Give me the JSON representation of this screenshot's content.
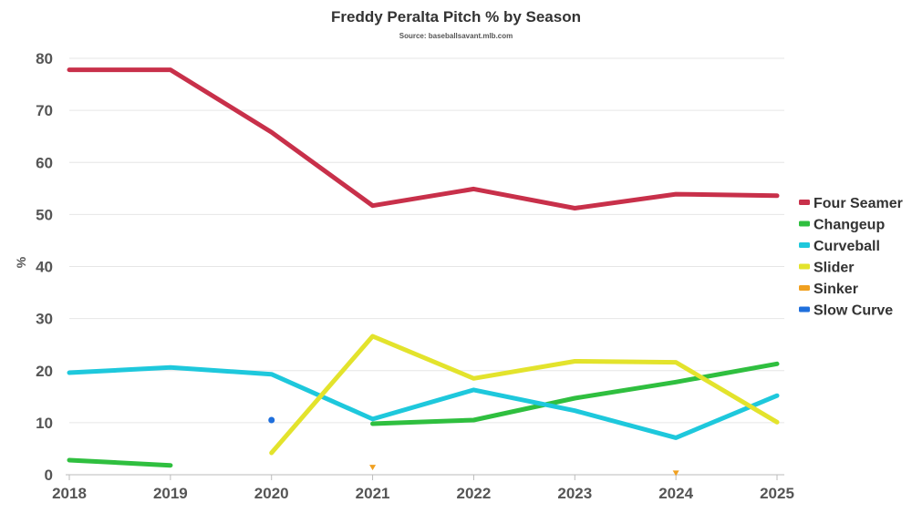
{
  "chart_data": {
    "type": "line",
    "title": "Freddy Peralta Pitch % by Season",
    "subtitle": "Source: baseballsavant.mlb.com",
    "xlabel": "",
    "ylabel": "%",
    "x": [
      2018,
      2019,
      2020,
      2021,
      2022,
      2023,
      2024,
      2025
    ],
    "x_tick_labels": [
      "2018",
      "2019",
      "2020",
      "2021",
      "2022",
      "2023",
      "2024",
      "2025"
    ],
    "ylim": [
      0,
      80
    ],
    "y_ticks": [
      0,
      10,
      20,
      30,
      40,
      50,
      60,
      70,
      80
    ],
    "grid": true,
    "legend_position": "right",
    "series": [
      {
        "name": "Four Seamer",
        "color": "#c8304a",
        "values": [
          77.8,
          77.8,
          65.8,
          51.7,
          54.9,
          51.2,
          53.9,
          53.6
        ]
      },
      {
        "name": "Changeup",
        "color": "#2fbf3f",
        "values": [
          2.8,
          1.8,
          null,
          9.8,
          10.5,
          14.7,
          17.8,
          21.3
        ]
      },
      {
        "name": "Curveball",
        "color": "#1ec8dc",
        "values": [
          19.6,
          20.6,
          19.3,
          10.7,
          16.3,
          12.3,
          7.1,
          15.2
        ]
      },
      {
        "name": "Slider",
        "color": "#e3e32c",
        "values": [
          null,
          null,
          4.2,
          26.6,
          18.5,
          21.8,
          21.6,
          10.1
        ]
      },
      {
        "name": "Sinker",
        "color": "#f0a020",
        "values": [
          null,
          null,
          null,
          1.2,
          null,
          null,
          0.1,
          null
        ]
      },
      {
        "name": "Slow Curve",
        "color": "#1f6fdc",
        "values": [
          null,
          null,
          10.5,
          null,
          null,
          null,
          null,
          null
        ]
      }
    ]
  }
}
